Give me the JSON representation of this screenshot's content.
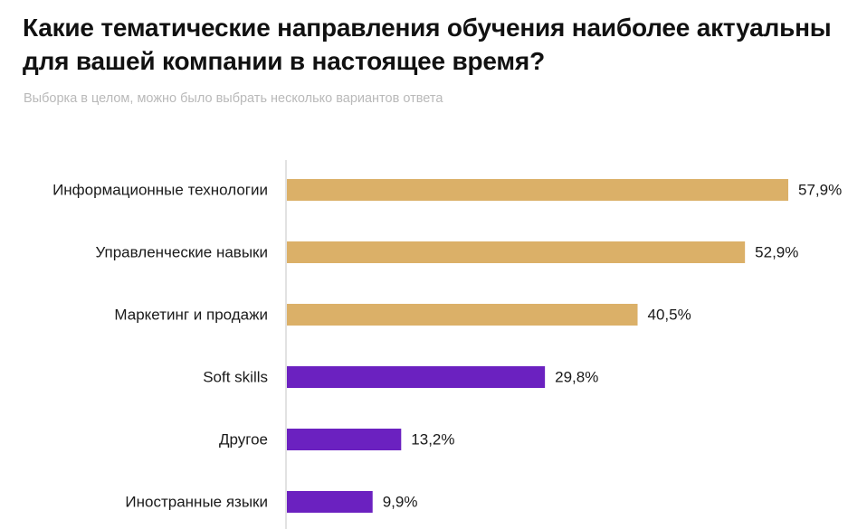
{
  "header": {
    "title": "Какие тематические направления обучения наиболее актуальны для вашей компании в настоящее время?",
    "subtitle": "Выборка в целом, можно было выбрать несколько вариантов ответа"
  },
  "chart_data": {
    "type": "bar",
    "orientation": "horizontal",
    "title": "Какие тематические направления обучения наиболее актуальны для вашей компании в настоящее время?",
    "subtitle": "Выборка в целом, можно было выбрать несколько вариантов ответа",
    "categories": [
      "Информационные технологии",
      "Управленческие навыки",
      "Маркетинг и продажи",
      "Soft skills",
      "Другое",
      "Иностранные языки"
    ],
    "values": [
      57.9,
      52.9,
      40.5,
      29.8,
      13.2,
      9.9
    ],
    "value_labels": [
      "57,9%",
      "52,9%",
      "40,5%",
      "29,8%",
      "13,2%",
      "9,9%"
    ],
    "bar_colors": [
      "#dbb068",
      "#dbb068",
      "#dbb068",
      "#6b21c0",
      "#6b21c0",
      "#6b21c0"
    ],
    "unit": "%",
    "xlim": [
      0,
      57.9
    ],
    "grid": false,
    "axis_line_color": "#d9d9d9"
  }
}
